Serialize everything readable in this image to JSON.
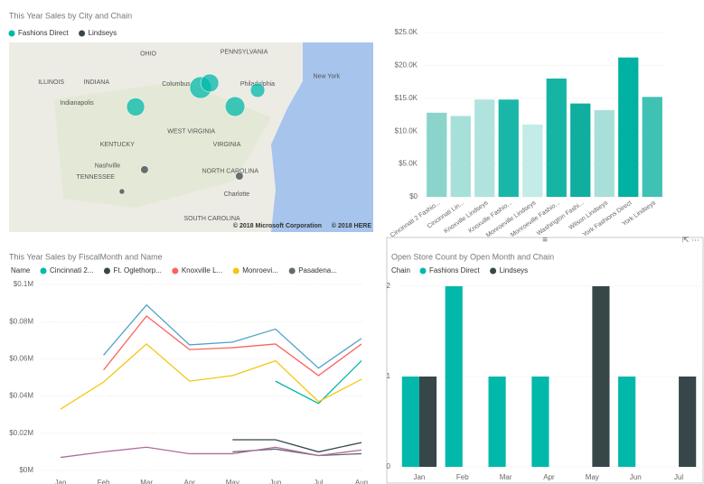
{
  "chart_data": [
    {
      "type": "map",
      "title": "This Year Sales by City and Chain",
      "series": [
        {
          "name": "Fashions Direct",
          "color": "#01b8aa"
        },
        {
          "name": "Lindseys",
          "color": "#374649"
        }
      ],
      "xlim": [
        -91,
        -71
      ],
      "ylim": [
        33,
        43
      ],
      "places": [
        {
          "text": "OHIO",
          "lon": -83.8,
          "lat": 42.4
        },
        {
          "text": "PENNSYLVANIA",
          "lon": -79.4,
          "lat": 42.5
        },
        {
          "text": "INDIANA",
          "lon": -86.9,
          "lat": 40.9
        },
        {
          "text": "ILLINOIS",
          "lon": -89.4,
          "lat": 40.9
        },
        {
          "text": "Indianapolis",
          "lon": -88.2,
          "lat": 39.8
        },
        {
          "text": "Columbus",
          "lon": -82.6,
          "lat": 40.8
        },
        {
          "text": "Philadelphia",
          "lon": -78.3,
          "lat": 40.8
        },
        {
          "text": "New York",
          "lon": -74.3,
          "lat": 41.2
        },
        {
          "text": "WEST VIRGINIA",
          "lon": -82.3,
          "lat": 38.3
        },
        {
          "text": "KENTUCKY",
          "lon": -86.0,
          "lat": 37.6
        },
        {
          "text": "VIRGINIA",
          "lon": -79.8,
          "lat": 37.6
        },
        {
          "text": "Nashville",
          "lon": -86.3,
          "lat": 36.5
        },
        {
          "text": "NORTH CAROLINA",
          "lon": -80.4,
          "lat": 36.2
        },
        {
          "text": "TENNESSEE",
          "lon": -87.3,
          "lat": 35.9
        },
        {
          "text": "Charlotte",
          "lon": -79.2,
          "lat": 35.0
        },
        {
          "text": "SOUTH CAROLINA",
          "lon": -81.4,
          "lat": 33.7
        }
      ],
      "points": [
        {
          "series": 0,
          "lon": -84.05,
          "lat": 39.6,
          "value": 11
        },
        {
          "series": 0,
          "lon": -80.48,
          "lat": 40.62,
          "value": 16
        },
        {
          "series": 0,
          "lon": -79.98,
          "lat": 40.86,
          "value": 11
        },
        {
          "series": 0,
          "lon": -78.59,
          "lat": 39.62,
          "value": 13
        },
        {
          "series": 0,
          "lon": -77.35,
          "lat": 40.48,
          "value": 7
        },
        {
          "series": 1,
          "lon": -83.56,
          "lat": 36.29,
          "value": 2
        },
        {
          "series": 1,
          "lon": -84.8,
          "lat": 35.14,
          "value": 1
        },
        {
          "series": 1,
          "lon": -78.35,
          "lat": 35.95,
          "value": 2
        }
      ],
      "credits": [
        "© 2018 Microsoft Corporation",
        "© 2018 HERE"
      ]
    },
    {
      "type": "bar",
      "categories": [
        "Cincinnati 2 Fashio...",
        "Cincinnati Lin...",
        "Knoxville Lindseys",
        "Knoxville Fashio...",
        "Monroeville Lindseys",
        "Monroeville Fashio...",
        "Washington Fashi...",
        "Wilson Lindseys",
        "York Fashions Direct",
        "York Lindseys"
      ],
      "values": [
        12.8,
        12.3,
        14.8,
        14.8,
        11,
        18,
        14.2,
        13.2,
        21.2,
        15.2
      ],
      "colors": [
        "#8ad4cc",
        "#a7dfd9",
        "#b0e3de",
        "#1ab7a8",
        "#c3ebe7",
        "#16b4a5",
        "#0fae9f",
        "#a8dfd9",
        "#01b2a3",
        "#3fc1b4"
      ],
      "ylim": [
        0,
        25
      ],
      "yticks": [
        {
          "value": 0,
          "label": "$0"
        },
        {
          "value": 5,
          "label": "$5.0K"
        },
        {
          "value": 10,
          "label": "$10.0K"
        },
        {
          "value": 15,
          "label": "$15.0K"
        },
        {
          "value": 20,
          "label": "$20.0K"
        },
        {
          "value": 25,
          "label": "$25.0K"
        }
      ]
    },
    {
      "type": "line",
      "title": "This Year Sales by FiscalMonth and Name",
      "legend_title": "Name",
      "categories": [
        "Jan",
        "Feb",
        "Mar",
        "Apr",
        "May",
        "Jun",
        "Jul",
        "Aug"
      ],
      "ylim": [
        0,
        0.1
      ],
      "yticks": [
        {
          "value": 0,
          "label": "$0M"
        },
        {
          "value": 0.02,
          "label": "$0.02M"
        },
        {
          "value": 0.04,
          "label": "$0.04M"
        },
        {
          "value": 0.06,
          "label": "$0.06M"
        },
        {
          "value": 0.08,
          "label": "$0.08M"
        },
        {
          "value": 0.1,
          "label": "$0.1M"
        }
      ],
      "series": [
        {
          "name": "Cincinnati 2...",
          "color": "#01b8aa",
          "values": [
            null,
            null,
            null,
            null,
            null,
            0.048,
            0.036,
            0.059
          ]
        },
        {
          "name": "Ft. Oglethorp...",
          "color": "#374649",
          "values": [
            null,
            null,
            null,
            null,
            0.0165,
            0.0165,
            0.01,
            0.015
          ]
        },
        {
          "name": "Knoxville L...",
          "color": "#fd625e",
          "values": [
            null,
            0.054,
            0.083,
            0.065,
            0.066,
            0.068,
            0.051,
            0.068
          ]
        },
        {
          "name": "Monroevi...",
          "color": "#f2c80f",
          "values": [
            0.033,
            0.0475,
            0.068,
            0.048,
            0.051,
            0.059,
            0.037,
            0.049
          ]
        },
        {
          "name": "Pasadena...",
          "color": "#5f6b6d",
          "values": [
            null,
            null,
            null,
            null,
            0.01,
            0.0115,
            0.008,
            0.009
          ]
        },
        {
          "color": "#4fa3c7",
          "values": [
            null,
            0.062,
            0.089,
            0.0675,
            0.069,
            0.076,
            0.055,
            0.071
          ]
        },
        {
          "color": "#b06c9c",
          "values": [
            0.007,
            0.01,
            0.0125,
            0.009,
            0.009,
            0.0125,
            0.008,
            0.011
          ]
        }
      ]
    },
    {
      "type": "bar",
      "title": "Open Store Count by Open Month and Chain",
      "legend_title": "Chain",
      "categories": [
        "Jan",
        "Feb",
        "Mar",
        "Apr",
        "May",
        "Jun",
        "Jul"
      ],
      "ylim": [
        0,
        2
      ],
      "yticks": [
        0,
        1,
        2
      ],
      "series": [
        {
          "name": "Fashions Direct",
          "color": "#01b8aa",
          "values": [
            1,
            2,
            1,
            1,
            null,
            1,
            null
          ]
        },
        {
          "name": "Lindseys",
          "color": "#374649",
          "values": [
            1,
            null,
            null,
            null,
            2,
            null,
            1
          ]
        }
      ]
    }
  ]
}
